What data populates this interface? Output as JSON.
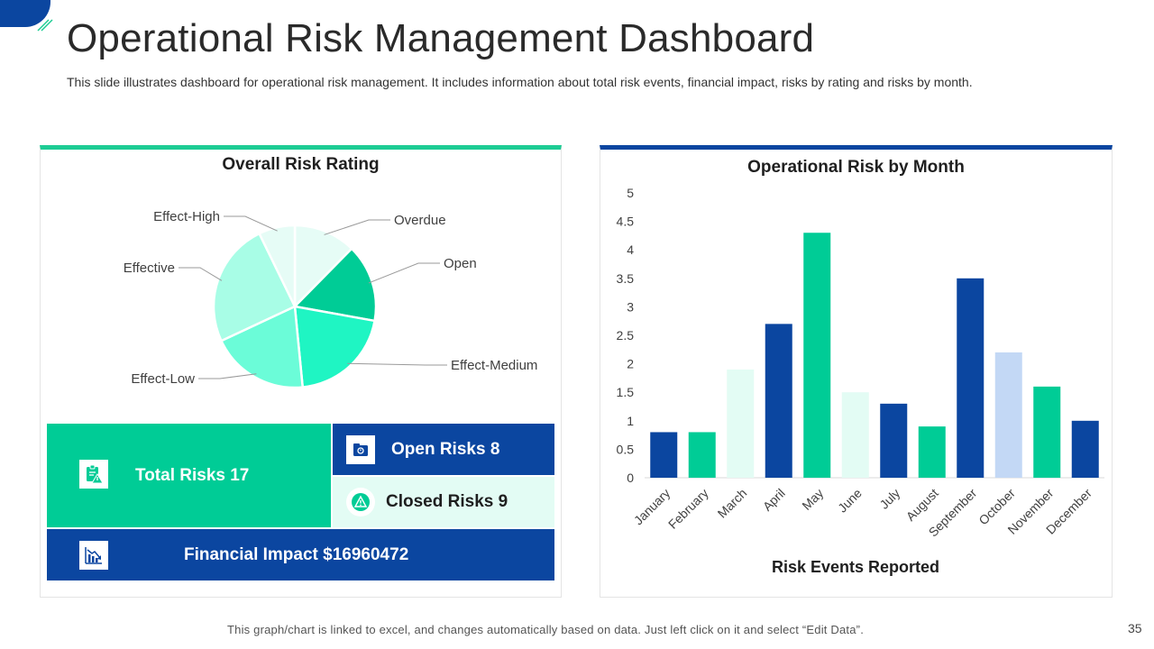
{
  "header": {
    "title": "Operational Risk Management Dashboard",
    "subtitle": "This slide illustrates dashboard for operational risk management. It includes information about total risk events, financial impact, risks by rating and risks by month."
  },
  "kpis": {
    "total_risks": "Total Risks 17",
    "open_risks": "Open Risks 8",
    "closed_risks": "Closed Risks 9",
    "financial_impact": "Financial Impact  $16960472"
  },
  "footer": {
    "note": "This graph/chart is linked to excel, and changes automatically based on data. Just left click on it and select “Edit Data”.",
    "page_number": "35"
  },
  "colors": {
    "navy": "#0b46a0",
    "green": "#00cc96",
    "mint": "#e3fcf4",
    "light_blue": "#c3d8f5"
  },
  "chart_data": [
    {
      "type": "pie",
      "title": "Overall Risk Rating",
      "categories": [
        "Overdue",
        "Open",
        "Effect-Medium",
        "Effect-Low",
        "Effective",
        "Effect-High"
      ],
      "values": [
        12,
        15,
        20,
        19,
        24,
        7
      ],
      "colors": [
        "#e6fcf6",
        "#00cc96",
        "#1ff5c3",
        "#6bfcd8",
        "#a8fde6",
        "#e6fcf6"
      ]
    },
    {
      "type": "bar",
      "title": "Operational Risk by Month",
      "xlabel": "Risk Events Reported",
      "ylabel": "",
      "ylim": [
        0,
        5
      ],
      "yticks": [
        "0",
        "0.5",
        "1",
        "1.5",
        "2",
        "2.5",
        "3",
        "3.5",
        "4",
        "4.5",
        "5"
      ],
      "categories": [
        "January",
        "February",
        "March",
        "April",
        "May",
        "June",
        "July",
        "August",
        "September",
        "October",
        "November",
        "December"
      ],
      "values": [
        0.8,
        0.8,
        1.9,
        2.7,
        4.3,
        1.5,
        1.3,
        0.9,
        3.5,
        2.2,
        1.6,
        1.0
      ],
      "colors": [
        "#0b46a0",
        "#00cc96",
        "#e3fcf4",
        "#0b46a0",
        "#00cc96",
        "#e3fcf4",
        "#0b46a0",
        "#00cc96",
        "#0b46a0",
        "#c3d8f5",
        "#00cc96",
        "#0b46a0"
      ]
    }
  ]
}
